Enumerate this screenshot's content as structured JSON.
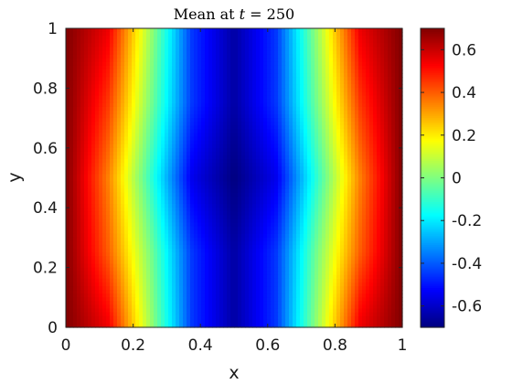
{
  "chart_data": {
    "type": "heatmap",
    "title": "Mean at t = 250",
    "title_parts": {
      "prefix": "Mean at ",
      "var": "t",
      "rest": " = 250"
    },
    "xlabel": "x",
    "ylabel": "y",
    "xlim": [
      0,
      1
    ],
    "ylim": [
      0,
      1
    ],
    "xticks": [
      "0",
      "0.2",
      "0.4",
      "0.6",
      "0.8",
      "1"
    ],
    "yticks": [
      "0",
      "0.2",
      "0.4",
      "0.6",
      "0.8",
      "1"
    ],
    "colorbar": {
      "colormap": "jet",
      "range": [
        -0.7,
        0.7
      ],
      "tick_values": [
        -0.6,
        -0.4,
        -0.2,
        0,
        0.2,
        0.4,
        0.6
      ],
      "tick_labels": [
        "-0.6",
        "-0.4",
        "-0.2",
        "0",
        "0.2",
        "0.4",
        "0.6"
      ]
    },
    "field_description": "value high (~0.7) at x=0 and x=1 edges, minimum (~-0.7) at x=0.5, contours bowed inward near y=0.5",
    "field_samples": {
      "y": [
        0,
        0.25,
        0.5,
        0.75,
        1
      ],
      "x": [
        0,
        0.125,
        0.25,
        0.375,
        0.5,
        0.625,
        0.75,
        0.875,
        1
      ],
      "values": [
        [
          0.7,
          0.55,
          0.05,
          -0.45,
          -0.65,
          -0.45,
          0.05,
          0.55,
          0.7
        ],
        [
          0.7,
          0.4,
          0.0,
          -0.45,
          -0.65,
          -0.45,
          0.0,
          0.4,
          0.7
        ],
        [
          0.7,
          0.35,
          -0.1,
          -0.55,
          -0.7,
          -0.55,
          -0.1,
          0.35,
          0.7
        ],
        [
          0.7,
          0.45,
          0.0,
          -0.45,
          -0.65,
          -0.45,
          0.0,
          0.45,
          0.7
        ],
        [
          0.7,
          0.55,
          0.05,
          -0.45,
          -0.65,
          -0.45,
          0.05,
          0.55,
          0.7
        ]
      ]
    }
  },
  "colors": {
    "axis": "#262626",
    "background": "#ffffff"
  }
}
